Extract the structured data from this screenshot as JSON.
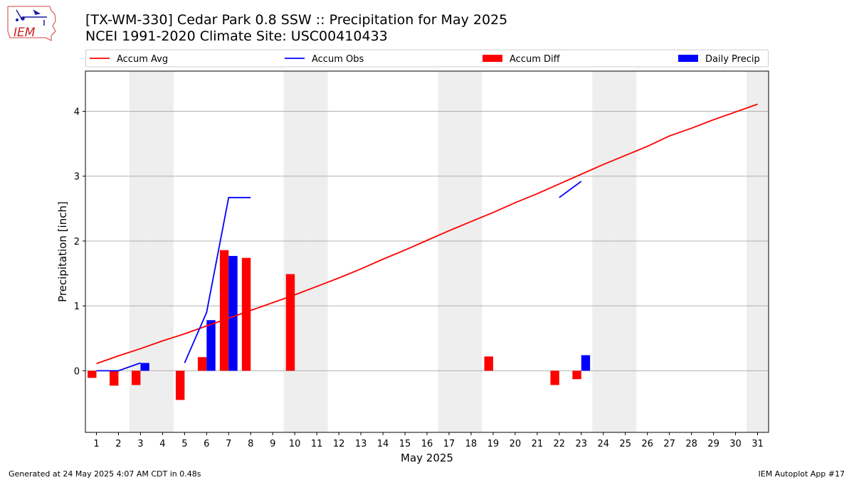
{
  "header": {
    "title_line1": "[TX-WM-330] Cedar Park 0.8 SSW :: Precipitation for May 2025",
    "title_line2": "NCEI 1991-2020 Climate Site: USC00410433"
  },
  "logo": {
    "text": "IEM"
  },
  "footer": {
    "left": "Generated at 24 May 2025 4:07 AM CDT in 0.48s",
    "right": "IEM Autoplot App #17"
  },
  "chart_data": {
    "type": "bar",
    "xlabel": "May 2025",
    "ylabel": "Precipitation [inch]",
    "xlim": [
      0.5,
      31.5
    ],
    "ylim": [
      -0.95,
      4.62
    ],
    "yticks": [
      0,
      1,
      2,
      3,
      4
    ],
    "grid": "y",
    "legend_placement": "top",
    "x": [
      1,
      2,
      3,
      4,
      5,
      6,
      7,
      8,
      9,
      10,
      11,
      12,
      13,
      14,
      15,
      16,
      17,
      18,
      19,
      20,
      21,
      22,
      23,
      24,
      25,
      26,
      27,
      28,
      29,
      30,
      31
    ],
    "weekend_days": [
      3,
      4,
      10,
      11,
      17,
      18,
      24,
      25,
      31
    ],
    "colors": {
      "avg": "#ff0000",
      "obs": "#0000ff",
      "diff": "#ff0000",
      "daily": "#0000ff",
      "weekend": "#eeeeee",
      "grid": "#b0b0b0"
    },
    "series": [
      {
        "name": "Accum Avg",
        "kind": "line",
        "values": [
          0.11,
          0.23,
          0.34,
          0.46,
          0.57,
          0.69,
          0.81,
          0.93,
          1.05,
          1.17,
          1.3,
          1.43,
          1.57,
          1.72,
          1.86,
          2.01,
          2.16,
          2.3,
          2.44,
          2.59,
          2.73,
          2.88,
          3.03,
          3.18,
          3.32,
          3.46,
          3.62,
          3.74,
          3.87,
          3.99,
          4.11
        ]
      },
      {
        "name": "Accum Obs",
        "kind": "line",
        "values": [
          0.0,
          0.0,
          0.12,
          null,
          0.12,
          0.9,
          2.67,
          2.67,
          null,
          null,
          null,
          null,
          null,
          null,
          null,
          null,
          null,
          null,
          null,
          null,
          null,
          2.67,
          2.92,
          null,
          null,
          null,
          null,
          null,
          null,
          null,
          null
        ]
      },
      {
        "name": "Accum Diff",
        "kind": "bar",
        "values": [
          -0.11,
          -0.23,
          -0.22,
          null,
          -0.45,
          0.21,
          1.86,
          1.74,
          null,
          1.49,
          null,
          null,
          null,
          null,
          null,
          null,
          null,
          null,
          0.22,
          null,
          null,
          -0.22,
          -0.13,
          null,
          null,
          null,
          null,
          null,
          null,
          null,
          null
        ]
      },
      {
        "name": "Daily Precip",
        "kind": "bar",
        "values": [
          0.0,
          0.0,
          0.12,
          null,
          0.0,
          0.78,
          1.77,
          0.0,
          null,
          null,
          null,
          null,
          null,
          null,
          null,
          null,
          null,
          null,
          null,
          null,
          null,
          0.0,
          0.24,
          null,
          null,
          null,
          null,
          null,
          null,
          null,
          null
        ]
      }
    ]
  }
}
